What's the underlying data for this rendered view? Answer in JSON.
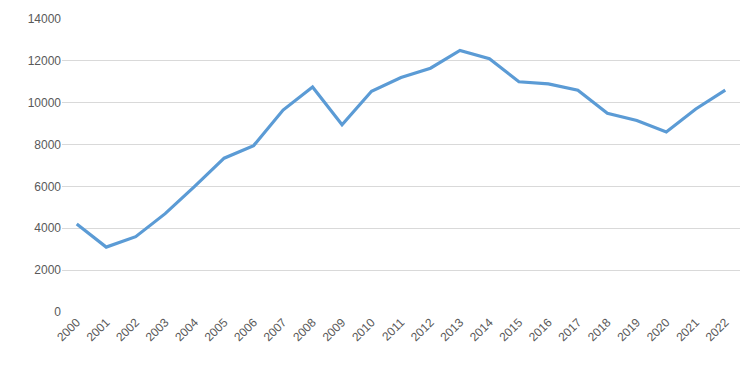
{
  "chart_data": {
    "type": "line",
    "categories": [
      "2000",
      "2001",
      "2002",
      "2003",
      "2004",
      "2005",
      "2006",
      "2007",
      "2008",
      "2009",
      "2010",
      "2011",
      "2012",
      "2013",
      "2014",
      "2015",
      "2016",
      "2017",
      "2018",
      "2019",
      "2020",
      "2021",
      "2022"
    ],
    "values": [
      4200,
      3100,
      3600,
      4700,
      6000,
      7350,
      7950,
      9650,
      10750,
      8950,
      10550,
      11200,
      11650,
      12500,
      12100,
      11000,
      10900,
      10600,
      9500,
      9150,
      8600,
      9700,
      10600
    ],
    "color": "#5b9bd5",
    "ylim": [
      0,
      14000
    ],
    "yticks": [
      0,
      2000,
      4000,
      6000,
      8000,
      10000,
      12000,
      14000
    ],
    "grid": true
  }
}
